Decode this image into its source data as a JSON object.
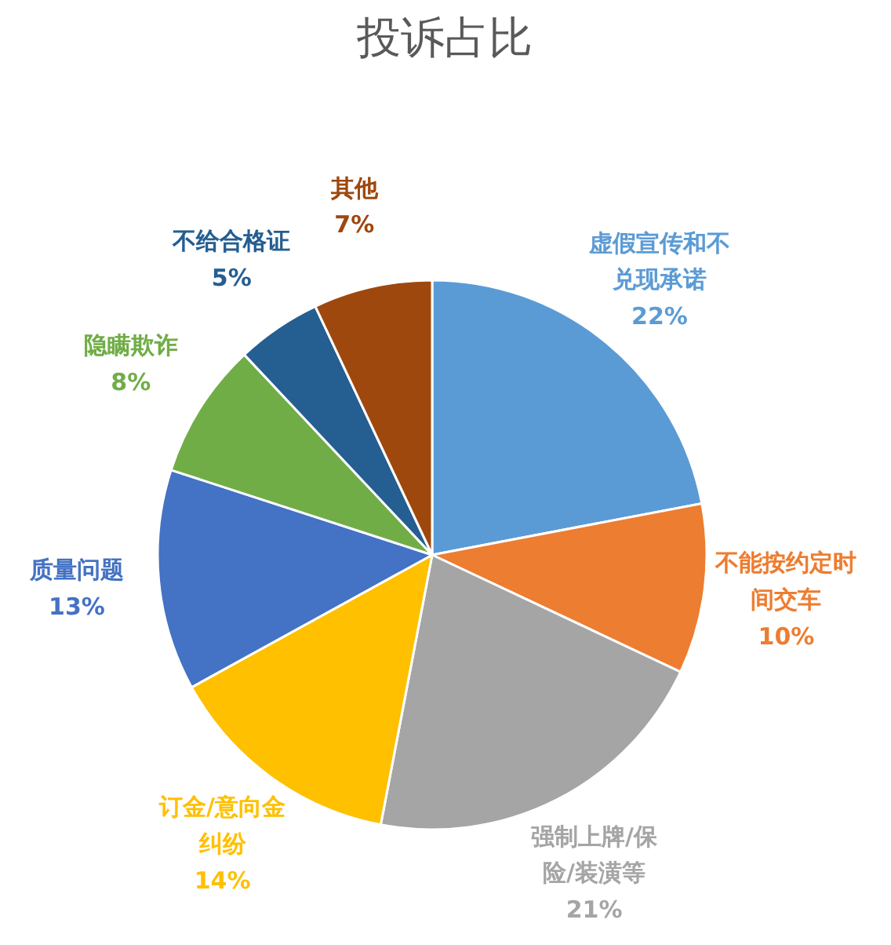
{
  "chart_data": {
    "type": "pie",
    "title": "投诉占比",
    "categories": [
      "虚假宣传和不兑现承诺",
      "不能按约定时间交车",
      "强制上牌/保险/装潢等",
      "订金/意向金纠纷",
      "质量问题",
      "隐瞒欺诈",
      "不给合格证",
      "其他"
    ],
    "values": [
      22,
      10,
      21,
      14,
      13,
      8,
      5,
      7
    ],
    "colors": [
      "#5b9bd5",
      "#ed7d31",
      "#a5a5a5",
      "#ffc000",
      "#4472c4",
      "#70ad47",
      "#255e91",
      "#9e480e"
    ],
    "value_labels": [
      "22%",
      "10%",
      "21%",
      "14%",
      "13%",
      "8%",
      "5%",
      "7%"
    ]
  }
}
